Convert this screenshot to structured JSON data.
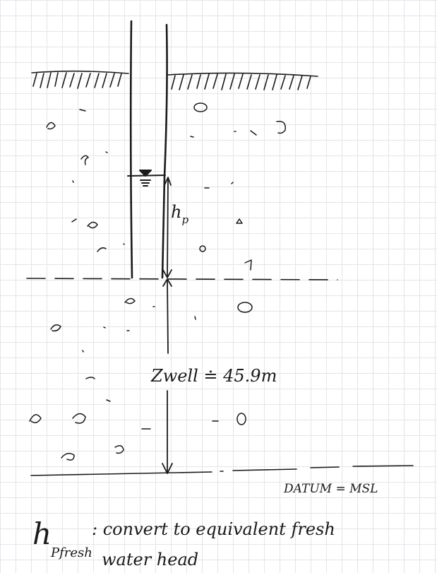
{
  "labels": {
    "pressure_head": "h",
    "pressure_head_sub": "p",
    "elevation": "Zwell ≐ 45.9m",
    "datum": "DATUM = MSL",
    "note_symbol": "h",
    "note_subscript": "Pfresh",
    "note_line1": ": convert to equivalent fresh",
    "note_line2": "water head"
  }
}
